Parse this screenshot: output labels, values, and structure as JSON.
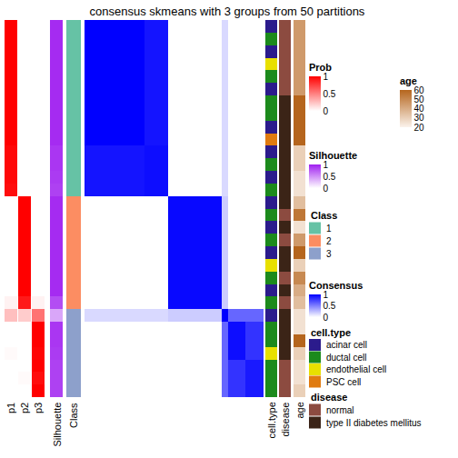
{
  "chart_data": {
    "type": "consensus_heatmap",
    "title": "consensus skmeans with 3 groups from 50 partitions",
    "prob": {
      "title": "Prob",
      "range": [
        0,
        1
      ],
      "ticks": [
        0,
        0.5,
        1
      ],
      "colors": [
        "#FFFFFF",
        "#FF0000"
      ],
      "series": [
        {
          "name": "p1",
          "values": [
            1,
            1,
            1,
            1,
            1,
            1,
            1,
            1,
            1,
            1,
            0.97,
            0.97,
            0.97,
            0.95,
            0,
            0,
            0,
            0,
            0,
            0,
            0,
            0,
            0.05,
            0.25,
            0,
            0,
            0.02,
            0,
            0,
            0
          ]
        },
        {
          "name": "p2",
          "values": [
            0,
            0,
            0,
            0,
            0,
            0,
            0,
            0,
            0,
            0,
            0,
            0,
            0,
            0,
            1,
            1,
            1,
            1,
            1,
            1,
            1,
            1,
            0.9,
            0.2,
            0,
            0,
            0,
            0,
            0.02,
            0
          ]
        },
        {
          "name": "p3",
          "values": [
            0,
            0,
            0,
            0,
            0,
            0,
            0,
            0,
            0,
            0,
            0,
            0,
            0,
            0,
            0,
            0,
            0,
            0,
            0,
            0,
            0,
            0,
            0.05,
            0.55,
            1,
            1,
            0.98,
            1,
            0.95,
            1
          ]
        }
      ]
    },
    "silhouette": {
      "title": "Silhouette",
      "range": [
        0,
        1
      ],
      "ticks": [
        0,
        0.5,
        1
      ],
      "colors": [
        "#FFFFFF",
        "#A020F0"
      ],
      "values": [
        0.95,
        0.95,
        0.95,
        0.95,
        0.95,
        0.95,
        0.95,
        0.95,
        0.95,
        0.95,
        0.9,
        0.9,
        0.88,
        0.85,
        0.95,
        0.95,
        0.95,
        0.95,
        0.95,
        0.95,
        0.95,
        0.95,
        0.8,
        0.4,
        0.9,
        0.9,
        0.88,
        0.85,
        0.85,
        0.85
      ]
    },
    "class": {
      "title": "Class",
      "levels": [
        1,
        2,
        3
      ],
      "colors": [
        "#66C2A5",
        "#FC8D62",
        "#8DA0CB"
      ],
      "values": [
        1,
        1,
        1,
        1,
        1,
        1,
        1,
        1,
        1,
        1,
        1,
        1,
        1,
        1,
        2,
        2,
        2,
        2,
        2,
        2,
        2,
        2,
        2,
        3,
        3,
        3,
        3,
        3,
        3,
        3
      ]
    },
    "consensus": {
      "title": "Consensus",
      "range": [
        0,
        1
      ],
      "ticks": [
        0,
        0.5,
        1
      ],
      "colors": [
        "#FFFFFF",
        "#0000FF"
      ],
      "cells": [
        [
          1,
          1,
          1,
          1,
          1,
          1,
          1,
          1,
          1,
          1,
          0.92,
          0.92,
          0.92,
          0.92,
          0,
          0,
          0,
          0,
          0,
          0,
          0,
          0,
          0,
          0.15,
          0,
          0,
          0,
          0,
          0,
          0
        ],
        [
          1,
          1,
          1,
          1,
          1,
          1,
          1,
          1,
          1,
          1,
          0.92,
          0.92,
          0.92,
          0.92,
          0,
          0,
          0,
          0,
          0,
          0,
          0,
          0,
          0,
          0.15,
          0,
          0,
          0,
          0,
          0,
          0
        ],
        [
          1,
          1,
          1,
          1,
          1,
          1,
          1,
          1,
          1,
          1,
          0.92,
          0.92,
          0.92,
          0.92,
          0,
          0,
          0,
          0,
          0,
          0,
          0,
          0,
          0,
          0.15,
          0,
          0,
          0,
          0,
          0,
          0
        ],
        [
          1,
          1,
          1,
          1,
          1,
          1,
          1,
          1,
          1,
          1,
          0.92,
          0.92,
          0.92,
          0.92,
          0,
          0,
          0,
          0,
          0,
          0,
          0,
          0,
          0,
          0.15,
          0,
          0,
          0,
          0,
          0,
          0
        ],
        [
          1,
          1,
          1,
          1,
          1,
          1,
          1,
          1,
          1,
          1,
          0.92,
          0.92,
          0.92,
          0.92,
          0,
          0,
          0,
          0,
          0,
          0,
          0,
          0,
          0,
          0.15,
          0,
          0,
          0,
          0,
          0,
          0
        ],
        [
          1,
          1,
          1,
          1,
          1,
          1,
          1,
          1,
          1,
          1,
          0.92,
          0.92,
          0.92,
          0.92,
          0,
          0,
          0,
          0,
          0,
          0,
          0,
          0,
          0,
          0.15,
          0,
          0,
          0,
          0,
          0,
          0
        ],
        [
          1,
          1,
          1,
          1,
          1,
          1,
          1,
          1,
          1,
          1,
          0.92,
          0.92,
          0.92,
          0.92,
          0,
          0,
          0,
          0,
          0,
          0,
          0,
          0,
          0,
          0.15,
          0,
          0,
          0,
          0,
          0,
          0
        ],
        [
          1,
          1,
          1,
          1,
          1,
          1,
          1,
          1,
          1,
          1,
          0.92,
          0.92,
          0.92,
          0.92,
          0,
          0,
          0,
          0,
          0,
          0,
          0,
          0,
          0,
          0.15,
          0,
          0,
          0,
          0,
          0,
          0
        ],
        [
          1,
          1,
          1,
          1,
          1,
          1,
          1,
          1,
          1,
          1,
          0.92,
          0.92,
          0.92,
          0.92,
          0,
          0,
          0,
          0,
          0,
          0,
          0,
          0,
          0,
          0.15,
          0,
          0,
          0,
          0,
          0,
          0
        ],
        [
          1,
          1,
          1,
          1,
          1,
          1,
          1,
          1,
          1,
          1,
          0.92,
          0.92,
          0.92,
          0.92,
          0,
          0,
          0,
          0,
          0,
          0,
          0,
          0,
          0,
          0.15,
          0,
          0,
          0,
          0,
          0,
          0
        ],
        [
          0.92,
          0.92,
          0.92,
          0.92,
          0.92,
          0.92,
          0.92,
          0.92,
          0.92,
          0.92,
          0.95,
          0.95,
          0.95,
          0.95,
          0,
          0,
          0,
          0,
          0,
          0,
          0,
          0,
          0,
          0.15,
          0,
          0,
          0,
          0,
          0,
          0
        ],
        [
          0.92,
          0.92,
          0.92,
          0.92,
          0.92,
          0.92,
          0.92,
          0.92,
          0.92,
          0.92,
          0.95,
          0.95,
          0.95,
          0.95,
          0,
          0,
          0,
          0,
          0,
          0,
          0,
          0,
          0,
          0.15,
          0,
          0,
          0,
          0,
          0,
          0
        ],
        [
          0.92,
          0.92,
          0.92,
          0.92,
          0.92,
          0.92,
          0.92,
          0.92,
          0.92,
          0.92,
          0.95,
          0.95,
          0.95,
          0.95,
          0,
          0,
          0,
          0,
          0,
          0,
          0,
          0,
          0,
          0.15,
          0,
          0,
          0,
          0,
          0,
          0
        ],
        [
          0.92,
          0.92,
          0.92,
          0.92,
          0.92,
          0.92,
          0.92,
          0.92,
          0.92,
          0.92,
          0.95,
          0.95,
          0.95,
          0.95,
          0,
          0,
          0,
          0,
          0,
          0,
          0,
          0,
          0,
          0.15,
          0,
          0,
          0,
          0,
          0,
          0
        ],
        [
          0,
          0,
          0,
          0,
          0,
          0,
          0,
          0,
          0,
          0,
          0,
          0,
          0,
          0,
          0.97,
          0.97,
          0.97,
          0.97,
          0.97,
          0.97,
          0.97,
          0.97,
          0.97,
          0.2,
          0,
          0,
          0,
          0,
          0,
          0
        ],
        [
          0,
          0,
          0,
          0,
          0,
          0,
          0,
          0,
          0,
          0,
          0,
          0,
          0,
          0,
          0.97,
          0.97,
          0.97,
          0.97,
          0.97,
          0.97,
          0.97,
          0.97,
          0.97,
          0.2,
          0,
          0,
          0,
          0,
          0,
          0
        ],
        [
          0,
          0,
          0,
          0,
          0,
          0,
          0,
          0,
          0,
          0,
          0,
          0,
          0,
          0,
          0.97,
          0.97,
          0.97,
          0.97,
          0.97,
          0.97,
          0.97,
          0.97,
          0.97,
          0.2,
          0,
          0,
          0,
          0,
          0,
          0
        ],
        [
          0,
          0,
          0,
          0,
          0,
          0,
          0,
          0,
          0,
          0,
          0,
          0,
          0,
          0,
          0.97,
          0.97,
          0.97,
          0.97,
          0.97,
          0.97,
          0.97,
          0.97,
          0.97,
          0.2,
          0,
          0,
          0,
          0,
          0,
          0
        ],
        [
          0,
          0,
          0,
          0,
          0,
          0,
          0,
          0,
          0,
          0,
          0,
          0,
          0,
          0,
          0.97,
          0.97,
          0.97,
          0.97,
          0.97,
          0.97,
          0.97,
          0.97,
          0.97,
          0.2,
          0,
          0,
          0,
          0,
          0,
          0
        ],
        [
          0,
          0,
          0,
          0,
          0,
          0,
          0,
          0,
          0,
          0,
          0,
          0,
          0,
          0,
          0.97,
          0.97,
          0.97,
          0.97,
          0.97,
          0.97,
          0.97,
          0.97,
          0.97,
          0.2,
          0,
          0,
          0,
          0,
          0,
          0
        ],
        [
          0,
          0,
          0,
          0,
          0,
          0,
          0,
          0,
          0,
          0,
          0,
          0,
          0,
          0,
          0.97,
          0.97,
          0.97,
          0.97,
          0.97,
          0.97,
          0.97,
          0.97,
          0.97,
          0.2,
          0,
          0,
          0,
          0,
          0,
          0
        ],
        [
          0,
          0,
          0,
          0,
          0,
          0,
          0,
          0,
          0,
          0,
          0,
          0,
          0,
          0,
          0.97,
          0.97,
          0.97,
          0.97,
          0.97,
          0.97,
          0.97,
          0.97,
          0.97,
          0.2,
          0,
          0,
          0,
          0,
          0,
          0
        ],
        [
          0,
          0,
          0,
          0,
          0,
          0,
          0,
          0,
          0,
          0,
          0,
          0,
          0,
          0,
          0.97,
          0.97,
          0.97,
          0.97,
          0.97,
          0.97,
          0.97,
          0.97,
          0.97,
          0.2,
          0,
          0,
          0,
          0,
          0,
          0
        ],
        [
          0.15,
          0.15,
          0.15,
          0.15,
          0.15,
          0.15,
          0.15,
          0.15,
          0.15,
          0.15,
          0.15,
          0.15,
          0.15,
          0.15,
          0.2,
          0.2,
          0.2,
          0.2,
          0.2,
          0.2,
          0.2,
          0.2,
          0.2,
          1,
          0.6,
          0.6,
          0.6,
          0.6,
          0.6,
          0.6
        ],
        [
          0,
          0,
          0,
          0,
          0,
          0,
          0,
          0,
          0,
          0,
          0,
          0,
          0,
          0,
          0,
          0,
          0,
          0,
          0,
          0,
          0,
          0,
          0,
          0.6,
          0.95,
          0.95,
          0.95,
          0.8,
          0.8,
          0.8
        ],
        [
          0,
          0,
          0,
          0,
          0,
          0,
          0,
          0,
          0,
          0,
          0,
          0,
          0,
          0,
          0,
          0,
          0,
          0,
          0,
          0,
          0,
          0,
          0,
          0.6,
          0.95,
          0.95,
          0.95,
          0.8,
          0.8,
          0.8
        ],
        [
          0,
          0,
          0,
          0,
          0,
          0,
          0,
          0,
          0,
          0,
          0,
          0,
          0,
          0,
          0,
          0,
          0,
          0,
          0,
          0,
          0,
          0,
          0,
          0.6,
          0.95,
          0.95,
          0.95,
          0.8,
          0.8,
          0.8
        ],
        [
          0,
          0,
          0,
          0,
          0,
          0,
          0,
          0,
          0,
          0,
          0,
          0,
          0,
          0,
          0,
          0,
          0,
          0,
          0,
          0,
          0,
          0,
          0,
          0.6,
          0.8,
          0.8,
          0.8,
          0.9,
          0.9,
          0.9
        ],
        [
          0,
          0,
          0,
          0,
          0,
          0,
          0,
          0,
          0,
          0,
          0,
          0,
          0,
          0,
          0,
          0,
          0,
          0,
          0,
          0,
          0,
          0,
          0,
          0.6,
          0.8,
          0.8,
          0.8,
          0.9,
          0.9,
          0.9
        ],
        [
          0,
          0,
          0,
          0,
          0,
          0,
          0,
          0,
          0,
          0,
          0,
          0,
          0,
          0,
          0,
          0,
          0,
          0,
          0,
          0,
          0,
          0,
          0,
          0.6,
          0.8,
          0.8,
          0.8,
          0.9,
          0.9,
          0.9
        ]
      ]
    },
    "annotations": [
      {
        "title": "cell.type",
        "levels": [
          "acinar cell",
          "ductal cell",
          "endothelial cell",
          "PSC cell"
        ],
        "colors": [
          "#2B1B8C",
          "#1C8A1C",
          "#E8E000",
          "#E07B10"
        ],
        "values": [
          "acinar cell",
          "ductal cell",
          "acinar cell",
          "endothelial cell",
          "ductal cell",
          "acinar cell",
          "ductal cell",
          "ductal cell",
          "acinar cell",
          "PSC cell",
          "acinar cell",
          "ductal cell",
          "acinar cell",
          "ductal cell",
          "acinar cell",
          "ductal cell",
          "acinar cell",
          "ductal cell",
          "acinar cell",
          "endothelial cell",
          "ductal cell",
          "acinar cell",
          "ductal cell",
          "acinar cell",
          "ductal cell",
          "ductal cell",
          "endothelial cell",
          "ductal cell",
          "ductal cell",
          "ductal cell"
        ]
      },
      {
        "title": "disease",
        "levels": [
          "normal",
          "type II diabetes mellitus"
        ],
        "colors": [
          "#8C4B40",
          "#3B2417"
        ],
        "values": [
          "normal",
          "normal",
          "normal",
          "normal",
          "normal",
          "normal",
          "type II diabetes mellitus",
          "type II diabetes mellitus",
          "type II diabetes mellitus",
          "type II diabetes mellitus",
          "type II diabetes mellitus",
          "type II diabetes mellitus",
          "type II diabetes mellitus",
          "type II diabetes mellitus",
          "type II diabetes mellitus",
          "normal",
          "type II diabetes mellitus",
          "normal",
          "type II diabetes mellitus",
          "type II diabetes mellitus",
          "normal",
          "type II diabetes mellitus",
          "normal",
          "type II diabetes mellitus",
          "type II diabetes mellitus",
          "type II diabetes mellitus",
          "type II diabetes mellitus",
          "normal",
          "normal",
          "normal"
        ]
      },
      {
        "title": "age",
        "range": [
          20,
          60
        ],
        "ticks": [
          20,
          30,
          40,
          50,
          60
        ],
        "colors": [
          "#FBF3EC",
          "#B5651D"
        ],
        "values": [
          45,
          45,
          45,
          45,
          45,
          45,
          60,
          60,
          60,
          60,
          30,
          30,
          25,
          25,
          35,
          55,
          25,
          45,
          60,
          30,
          50,
          40,
          35,
          25,
          25,
          60,
          30,
          25,
          25,
          30
        ]
      }
    ]
  }
}
